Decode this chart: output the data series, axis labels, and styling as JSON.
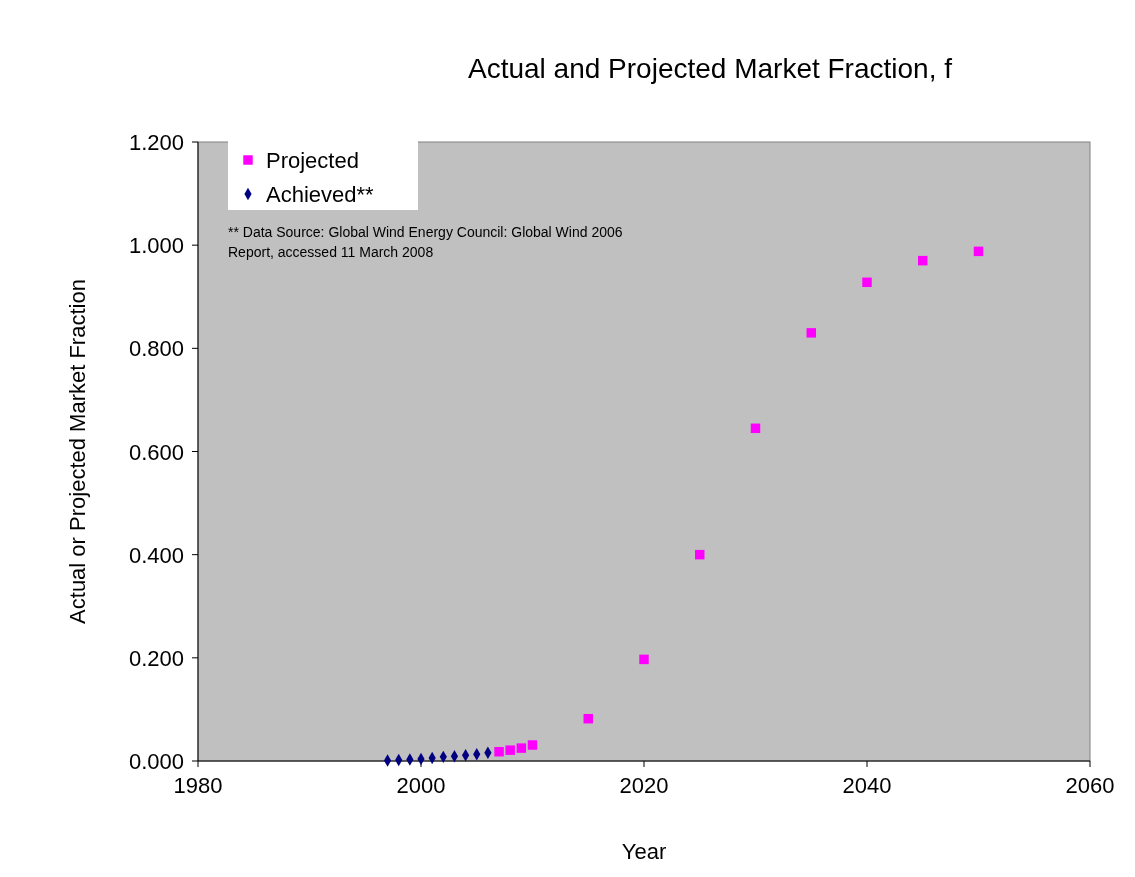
{
  "chart_data": {
    "type": "scatter",
    "title": "Actual and Projected Market Fraction, f",
    "xlabel": "Year",
    "ylabel": "Actual or Projected Market Fraction",
    "annotations": [
      "** Data Source:  Global Wind Energy Council:  Global Wind 2006 Report, accessed 11 March 2008"
    ],
    "series": [
      {
        "name": "Projected",
        "color": "#ff00ff",
        "marker": "square",
        "x": [
          2007,
          2008,
          2009,
          2010,
          2015,
          2020,
          2025,
          2030,
          2035,
          2040,
          2045,
          2050
        ],
        "values": [
          0.018,
          0.021,
          0.025,
          0.031,
          0.082,
          0.197,
          0.4,
          0.645,
          0.83,
          0.928,
          0.97,
          0.988
        ]
      },
      {
        "name": "Achieved**",
        "color": "#000080",
        "marker": "diamond",
        "x": [
          1997,
          1998,
          1999,
          2000,
          2001,
          2002,
          2003,
          2004,
          2005,
          2006
        ],
        "values": [
          0.001,
          0.002,
          0.003,
          0.004,
          0.006,
          0.008,
          0.009,
          0.011,
          0.013,
          0.016
        ]
      }
    ],
    "xlim": [
      1980,
      2060
    ],
    "xticks": [
      1980,
      2000,
      2020,
      2040,
      2060
    ],
    "ylim": [
      0,
      1.2
    ],
    "yticks": [
      {
        "value": 0,
        "label": "0.000"
      },
      {
        "value": 0.2,
        "label": "0.200"
      },
      {
        "value": 0.4,
        "label": "0.400"
      },
      {
        "value": 0.6,
        "label": "0.600"
      },
      {
        "value": 0.8,
        "label": "0.800"
      },
      {
        "value": 1.0,
        "label": "1.000"
      },
      {
        "value": 1.2,
        "label": "1.200"
      }
    ],
    "grid": false,
    "legend": "top left"
  }
}
